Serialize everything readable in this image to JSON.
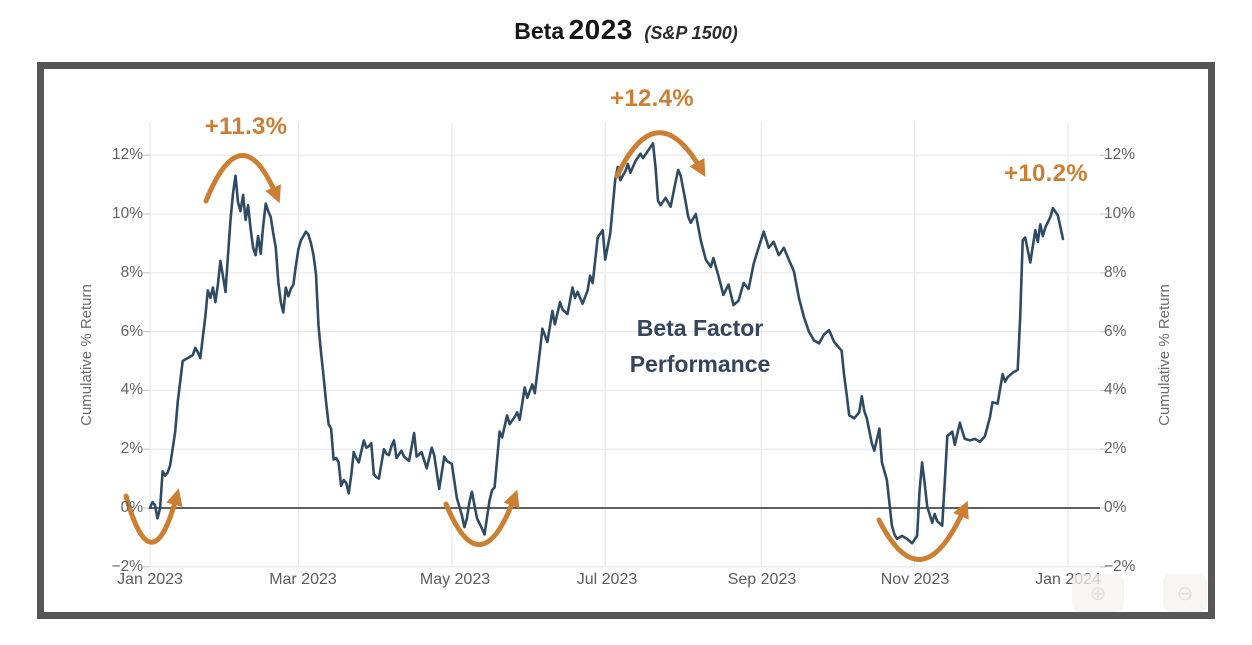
{
  "title": {
    "factor": "Beta",
    "year": "2023",
    "subtitle": "(S&P 1500)"
  },
  "annotations": {
    "feb_peak": "+11.3%",
    "jul_peak": "+12.4%",
    "dec_peak": "+10.2%",
    "center_line1": "Beta Factor",
    "center_line2": "Performance"
  },
  "axes": {
    "left": {
      "title": "Cumulative % Return",
      "ticks": [
        "12%",
        "10%",
        "8%",
        "6%",
        "4%",
        "2%",
        "0%",
        "−2%"
      ]
    },
    "right": {
      "title": "Cumulative % Return",
      "ticks": [
        "12%",
        "10%",
        "8%",
        "6%",
        "4%",
        "2%",
        "0%",
        "−2%"
      ]
    },
    "x": {
      "labels": [
        "Jan 2023",
        "Mar 2023",
        "May 2023",
        "Jul 2023",
        "Sep 2023",
        "Nov 2023",
        "Jan 2024"
      ]
    }
  },
  "colors": {
    "line": "#2f4b63",
    "accent": "#cc7f33",
    "zero_line": "#5e5e5e",
    "grid": "#e9e9e9",
    "axis_tick": "#cccccc",
    "frame": "#575757",
    "tick_text": "#636363",
    "center_text": "#36455e"
  },
  "chart_data": {
    "type": "line",
    "title": "Beta 2023 (S&P 1500)",
    "xlabel": "",
    "ylabel": "Cumulative % Return",
    "ylim": [
      -2,
      12
    ],
    "grid": true,
    "legend": "none",
    "x_unit": "day_of_year_2023",
    "x_tick_days": [
      0,
      59,
      120,
      181,
      243,
      304,
      365
    ],
    "x_tick_labels": [
      "Jan 2023",
      "Mar 2023",
      "May 2023",
      "Jul 2023",
      "Sep 2023",
      "Nov 2023",
      "Jan 2024"
    ],
    "y_ticks": [
      12,
      10,
      8,
      6,
      4,
      2,
      0,
      -2
    ],
    "zero_line": true,
    "annotations": [
      {
        "text": "+11.3%",
        "day": 34,
        "value": 11.3
      },
      {
        "text": "+12.4%",
        "day": 200,
        "value": 12.4
      },
      {
        "text": "+10.2%",
        "day": 359,
        "value": 10.2
      },
      {
        "text": "Beta Factor Performance",
        "day": 225,
        "value": 5.5
      }
    ],
    "series": [
      {
        "name": "Beta Factor Performance",
        "points": [
          [
            0,
            0
          ],
          [
            1,
            0.2
          ],
          [
            2,
            0.1
          ],
          [
            3,
            -0.35
          ],
          [
            4,
            0
          ],
          [
            5,
            1.25
          ],
          [
            6,
            1.1
          ],
          [
            7,
            1.2
          ],
          [
            8,
            1.45
          ],
          [
            9,
            2
          ],
          [
            10,
            2.6
          ],
          [
            11,
            3.6
          ],
          [
            12,
            4.3
          ],
          [
            13,
            5
          ],
          [
            14,
            5.05
          ],
          [
            15,
            5.1
          ],
          [
            16,
            5.15
          ],
          [
            17,
            5.2
          ],
          [
            18,
            5.45
          ],
          [
            19,
            5.3
          ],
          [
            20,
            5.1
          ],
          [
            22,
            6.5
          ],
          [
            23,
            7.4
          ],
          [
            24,
            7.15
          ],
          [
            25,
            7.5
          ],
          [
            26,
            7
          ],
          [
            27,
            7.6
          ],
          [
            28,
            8.4
          ],
          [
            29,
            7.9
          ],
          [
            30,
            7.35
          ],
          [
            31,
            8.6
          ],
          [
            32,
            9.8
          ],
          [
            33,
            10.7
          ],
          [
            34,
            11.3
          ],
          [
            35,
            10.4
          ],
          [
            36,
            10.1
          ],
          [
            37,
            10.65
          ],
          [
            38,
            9.8
          ],
          [
            39,
            10.3
          ],
          [
            40,
            9.5
          ],
          [
            41,
            8.85
          ],
          [
            42,
            8.6
          ],
          [
            43,
            9.25
          ],
          [
            44,
            8.65
          ],
          [
            45,
            9.6
          ],
          [
            46,
            10.35
          ],
          [
            47,
            10.1
          ],
          [
            48,
            9.9
          ],
          [
            49,
            9.35
          ],
          [
            50,
            8.85
          ],
          [
            51,
            7.7
          ],
          [
            52,
            7
          ],
          [
            53,
            6.65
          ],
          [
            54,
            7.5
          ],
          [
            55,
            7.2
          ],
          [
            56,
            7.45
          ],
          [
            57,
            7.6
          ],
          [
            58,
            8.25
          ],
          [
            59,
            8.8
          ],
          [
            60,
            9.1
          ],
          [
            61,
            9.25
          ],
          [
            62,
            9.4
          ],
          [
            63,
            9.3
          ],
          [
            64,
            9
          ],
          [
            65,
            8.6
          ],
          [
            66,
            7.95
          ],
          [
            67,
            6.2
          ],
          [
            68,
            5.3
          ],
          [
            69,
            4.5
          ],
          [
            70,
            3.6
          ],
          [
            71,
            2.85
          ],
          [
            72,
            2.7
          ],
          [
            73,
            1.65
          ],
          [
            74,
            1.7
          ],
          [
            75,
            1.55
          ],
          [
            76,
            0.75
          ],
          [
            77,
            0.95
          ],
          [
            78,
            0.85
          ],
          [
            79,
            0.5
          ],
          [
            80,
            1.1
          ],
          [
            81,
            1.9
          ],
          [
            82,
            1.7
          ],
          [
            83,
            1.55
          ],
          [
            85,
            2.3
          ],
          [
            86,
            2.05
          ],
          [
            87,
            2.1
          ],
          [
            88,
            2.2
          ],
          [
            89,
            1.15
          ],
          [
            90,
            1.05
          ],
          [
            91,
            1
          ],
          [
            93,
            2
          ],
          [
            94,
            1.85
          ],
          [
            95,
            1.8
          ],
          [
            96,
            2.1
          ],
          [
            97,
            2.3
          ],
          [
            98,
            1.7
          ],
          [
            100,
            1.95
          ],
          [
            101,
            1.75
          ],
          [
            103,
            1.6
          ],
          [
            105,
            2.55
          ],
          [
            106,
            1.75
          ],
          [
            108,
            1.9
          ],
          [
            110,
            1.35
          ],
          [
            112,
            2.05
          ],
          [
            113,
            1.8
          ],
          [
            115,
            0.65
          ],
          [
            117,
            1.75
          ],
          [
            118,
            1.6
          ],
          [
            120,
            1.5
          ],
          [
            122,
            0.35
          ],
          [
            124,
            -0.25
          ],
          [
            125,
            -0.65
          ],
          [
            126,
            -0.35
          ],
          [
            127,
            0.2
          ],
          [
            128,
            0.55
          ],
          [
            130,
            -0.35
          ],
          [
            132,
            -0.7
          ],
          [
            133,
            -0.9
          ],
          [
            135,
            0.25
          ],
          [
            136,
            0.6
          ],
          [
            137,
            0.7
          ],
          [
            139,
            2.6
          ],
          [
            140,
            2.4
          ],
          [
            142,
            3.15
          ],
          [
            143,
            2.85
          ],
          [
            145,
            3.1
          ],
          [
            146,
            3.25
          ],
          [
            147,
            3
          ],
          [
            149,
            4.1
          ],
          [
            150,
            3.75
          ],
          [
            152,
            4.2
          ],
          [
            153,
            3.9
          ],
          [
            155,
            5.3
          ],
          [
            156,
            6.1
          ],
          [
            158,
            5.65
          ],
          [
            160,
            6.7
          ],
          [
            161,
            6.25
          ],
          [
            163,
            7
          ],
          [
            164,
            6.75
          ],
          [
            166,
            6.6
          ],
          [
            168,
            7.5
          ],
          [
            169,
            7.15
          ],
          [
            170,
            7.35
          ],
          [
            172,
            6.95
          ],
          [
            174,
            7.4
          ],
          [
            175,
            7.9
          ],
          [
            176,
            7.65
          ],
          [
            178,
            9.2
          ],
          [
            180,
            9.45
          ],
          [
            181,
            8.45
          ],
          [
            183,
            9.35
          ],
          [
            185,
            11.2
          ],
          [
            186,
            11.6
          ],
          [
            187,
            11.15
          ],
          [
            189,
            11.45
          ],
          [
            190,
            11.7
          ],
          [
            191,
            11.4
          ],
          [
            193,
            11.8
          ],
          [
            195,
            12.05
          ],
          [
            196,
            11.9
          ],
          [
            198,
            12.15
          ],
          [
            200,
            12.4
          ],
          [
            201,
            11.6
          ],
          [
            202,
            10.45
          ],
          [
            203,
            10.3
          ],
          [
            205,
            10.55
          ],
          [
            207,
            10.25
          ],
          [
            209,
            11.1
          ],
          [
            210,
            11.5
          ],
          [
            211,
            11.3
          ],
          [
            213,
            10.4
          ],
          [
            214,
            9.9
          ],
          [
            215,
            9.7
          ],
          [
            217,
            10
          ],
          [
            219,
            9.1
          ],
          [
            221,
            8.45
          ],
          [
            223,
            8.2
          ],
          [
            224,
            8.5
          ],
          [
            226,
            7.9
          ],
          [
            228,
            7.25
          ],
          [
            230,
            7.6
          ],
          [
            232,
            6.9
          ],
          [
            234,
            7.05
          ],
          [
            236,
            7.65
          ],
          [
            238,
            7.45
          ],
          [
            240,
            8.3
          ],
          [
            242,
            8.85
          ],
          [
            244,
            9.4
          ],
          [
            246,
            8.85
          ],
          [
            248,
            9.05
          ],
          [
            250,
            8.6
          ],
          [
            252,
            8.85
          ],
          [
            254,
            8.45
          ],
          [
            256,
            8.05
          ],
          [
            258,
            7.15
          ],
          [
            260,
            6.5
          ],
          [
            262,
            6
          ],
          [
            264,
            5.7
          ],
          [
            266,
            5.6
          ],
          [
            268,
            5.9
          ],
          [
            270,
            6.05
          ],
          [
            272,
            5.65
          ],
          [
            274,
            5.45
          ],
          [
            275,
            5.35
          ],
          [
            276,
            4.5
          ],
          [
            277,
            3.85
          ],
          [
            278,
            3.15
          ],
          [
            280,
            3.05
          ],
          [
            282,
            3.25
          ],
          [
            283,
            3.8
          ],
          [
            284,
            3.3
          ],
          [
            285,
            3.05
          ],
          [
            287,
            2.2
          ],
          [
            288,
            1.95
          ],
          [
            290,
            2.7
          ],
          [
            291,
            1.55
          ],
          [
            293,
            0.95
          ],
          [
            295,
            -0.6
          ],
          [
            296,
            -0.9
          ],
          [
            297,
            -1.05
          ],
          [
            299,
            -0.95
          ],
          [
            301,
            -1.05
          ],
          [
            303,
            -1.2
          ],
          [
            305,
            -0.95
          ],
          [
            306,
            0.6
          ],
          [
            307,
            1.55
          ],
          [
            308,
            0.85
          ],
          [
            309,
            0.05
          ],
          [
            311,
            -0.5
          ],
          [
            312,
            -0.2
          ],
          [
            313,
            -0.45
          ],
          [
            315,
            -0.6
          ],
          [
            316,
            0.9
          ],
          [
            317,
            2.45
          ],
          [
            319,
            2.6
          ],
          [
            320,
            2.15
          ],
          [
            322,
            2.9
          ],
          [
            323,
            2.6
          ],
          [
            324,
            2.35
          ],
          [
            326,
            2.3
          ],
          [
            328,
            2.35
          ],
          [
            330,
            2.25
          ],
          [
            332,
            2.45
          ],
          [
            334,
            3.1
          ],
          [
            335,
            3.6
          ],
          [
            337,
            3.55
          ],
          [
            339,
            4.55
          ],
          [
            340,
            4.3
          ],
          [
            341,
            4.45
          ],
          [
            343,
            4.6
          ],
          [
            345,
            4.7
          ],
          [
            346,
            6.5
          ],
          [
            347,
            9.1
          ],
          [
            348,
            9.2
          ],
          [
            350,
            8.35
          ],
          [
            352,
            9.45
          ],
          [
            353,
            9.05
          ],
          [
            354,
            9.65
          ],
          [
            355,
            9.25
          ],
          [
            356,
            9.55
          ],
          [
            358,
            9.9
          ],
          [
            359,
            10.2
          ],
          [
            361,
            9.95
          ],
          [
            363,
            9.15
          ]
        ]
      }
    ]
  },
  "watermark": {
    "icon1": "⊕",
    "icon2": "⊖"
  }
}
